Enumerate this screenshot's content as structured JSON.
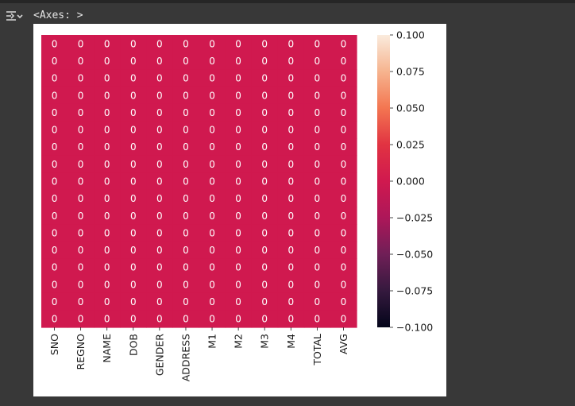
{
  "output": {
    "icon": "output-toggle-icon",
    "repr_text": "<Axes: >"
  },
  "colors": {
    "page_bg": "#383838",
    "figure_bg": "#ffffff",
    "cell_color": "#d0194f",
    "annotation_color": "#ffffff"
  },
  "chart_data": {
    "type": "heatmap",
    "title": "",
    "xlabel": "",
    "ylabel": "",
    "columns": [
      "SNO",
      "REGNO",
      "NAME",
      "DOB",
      "GENDER",
      "ADDRESS",
      "M1",
      "M2",
      "M3",
      "M4",
      "TOTAL",
      "AVG"
    ],
    "row_count": 17,
    "values": [
      [
        0,
        0,
        0,
        0,
        0,
        0,
        0,
        0,
        0,
        0,
        0,
        0
      ],
      [
        0,
        0,
        0,
        0,
        0,
        0,
        0,
        0,
        0,
        0,
        0,
        0
      ],
      [
        0,
        0,
        0,
        0,
        0,
        0,
        0,
        0,
        0,
        0,
        0,
        0
      ],
      [
        0,
        0,
        0,
        0,
        0,
        0,
        0,
        0,
        0,
        0,
        0,
        0
      ],
      [
        0,
        0,
        0,
        0,
        0,
        0,
        0,
        0,
        0,
        0,
        0,
        0
      ],
      [
        0,
        0,
        0,
        0,
        0,
        0,
        0,
        0,
        0,
        0,
        0,
        0
      ],
      [
        0,
        0,
        0,
        0,
        0,
        0,
        0,
        0,
        0,
        0,
        0,
        0
      ],
      [
        0,
        0,
        0,
        0,
        0,
        0,
        0,
        0,
        0,
        0,
        0,
        0
      ],
      [
        0,
        0,
        0,
        0,
        0,
        0,
        0,
        0,
        0,
        0,
        0,
        0
      ],
      [
        0,
        0,
        0,
        0,
        0,
        0,
        0,
        0,
        0,
        0,
        0,
        0
      ],
      [
        0,
        0,
        0,
        0,
        0,
        0,
        0,
        0,
        0,
        0,
        0,
        0
      ],
      [
        0,
        0,
        0,
        0,
        0,
        0,
        0,
        0,
        0,
        0,
        0,
        0
      ],
      [
        0,
        0,
        0,
        0,
        0,
        0,
        0,
        0,
        0,
        0,
        0,
        0
      ],
      [
        0,
        0,
        0,
        0,
        0,
        0,
        0,
        0,
        0,
        0,
        0,
        0
      ],
      [
        0,
        0,
        0,
        0,
        0,
        0,
        0,
        0,
        0,
        0,
        0,
        0
      ],
      [
        0,
        0,
        0,
        0,
        0,
        0,
        0,
        0,
        0,
        0,
        0,
        0
      ],
      [
        0,
        0,
        0,
        0,
        0,
        0,
        0,
        0,
        0,
        0,
        0,
        0
      ]
    ],
    "annot": true,
    "colorbar": {
      "vmin": -0.1,
      "vmax": 0.1,
      "ticks": [
        "0.100",
        "0.075",
        "0.050",
        "0.025",
        "0.000",
        "−0.025",
        "−0.050",
        "−0.075",
        "−0.100"
      ],
      "colormap": "rocket",
      "stops": [
        "#03051a",
        "#35193e",
        "#701f57",
        "#ad1759",
        "#d0194f",
        "#e13342",
        "#f37651",
        "#f6b48f",
        "#faebdd"
      ]
    }
  }
}
